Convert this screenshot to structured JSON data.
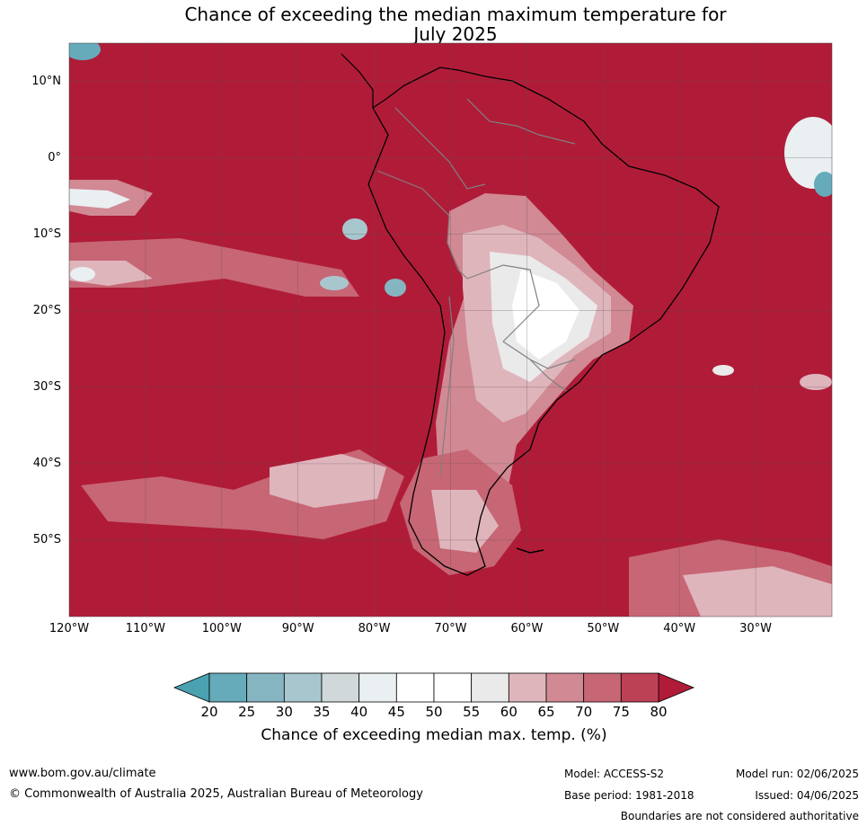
{
  "title": {
    "line1": "Chance of exceeding the median maximum temperature for",
    "line2": "July 2025"
  },
  "map": {
    "lat_labels": [
      "10°N",
      "0°",
      "10°S",
      "20°S",
      "30°S",
      "40°S",
      "50°S"
    ],
    "lon_labels": [
      "120°W",
      "110°W",
      "100°W",
      "90°W",
      "80°W",
      "70°W",
      "60°W",
      "50°W",
      "40°W",
      "30°W"
    ],
    "extent": {
      "lon": [
        -120,
        -20
      ],
      "lat": [
        -60,
        15
      ]
    },
    "colors": {
      "ocean_high": "#b01c38",
      "country_border": "#808080",
      "coastline": "#000000"
    }
  },
  "colorbar": {
    "ticks": [
      "20",
      "25",
      "30",
      "35",
      "40",
      "45",
      "50",
      "55",
      "60",
      "65",
      "70",
      "75",
      "80"
    ],
    "colors": [
      "#65abb9",
      "#86b5c2",
      "#a8c6ce",
      "#d1d8da",
      "#eaeff1",
      "#ffffff",
      "#ffffff",
      "#ebeaeb",
      "#dfb5bc",
      "#d18994",
      "#c76675",
      "#bc4155"
    ],
    "under_color": "#4aa2b1",
    "over_color": "#b01c38",
    "label": "Chance of exceeding median max. temp. (%)"
  },
  "footer": {
    "website": "www.bom.gov.au/climate",
    "copyright": "© Commonwealth of Australia 2025, Australian Bureau of Meteorology",
    "model": "Model: ACCESS-S2",
    "base_period": "Base period: 1981-2018",
    "model_run": "Model run: 02/06/2025",
    "issued": "Issued: 04/06/2025",
    "disclaimer": "Boundaries are not considered authoritative"
  }
}
